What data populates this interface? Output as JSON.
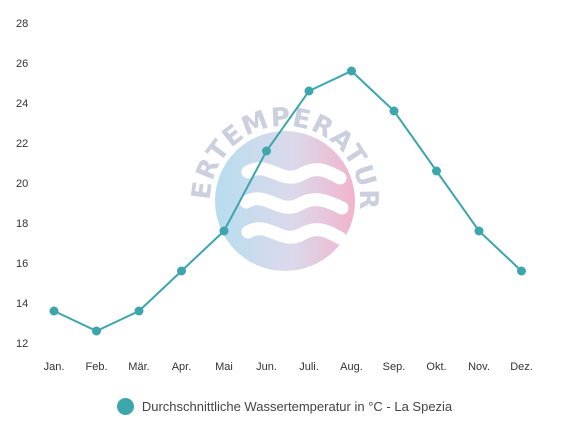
{
  "chart_data": {
    "type": "line",
    "categories": [
      "Jan.",
      "Feb.",
      "Mär.",
      "Apr.",
      "Mai",
      "Jun.",
      "Juli.",
      "Aug.",
      "Sep.",
      "Okt.",
      "Nov.",
      "Dez."
    ],
    "series": [
      {
        "name": "Durchschnittliche Wassertemperatur in °C - La Spezia",
        "values": [
          13.6,
          12.6,
          13.6,
          15.6,
          17.6,
          21.6,
          24.6,
          25.6,
          23.6,
          20.6,
          17.6,
          15.6
        ]
      }
    ],
    "yticks": [
      12,
      14,
      16,
      18,
      20,
      22,
      24,
      26,
      28
    ],
    "ylim": [
      12,
      28
    ],
    "grid": false,
    "legend_position": "bottom-center"
  },
  "colors": {
    "series": "#3da6ad",
    "tick_text": "#333333",
    "watermark_text": "#c7cadb"
  },
  "watermark": {
    "text": "WASSERTEMPERATUR.ORG"
  },
  "legend": {
    "label": "Durchschnittliche Wassertemperatur in °C - La Spezia"
  }
}
